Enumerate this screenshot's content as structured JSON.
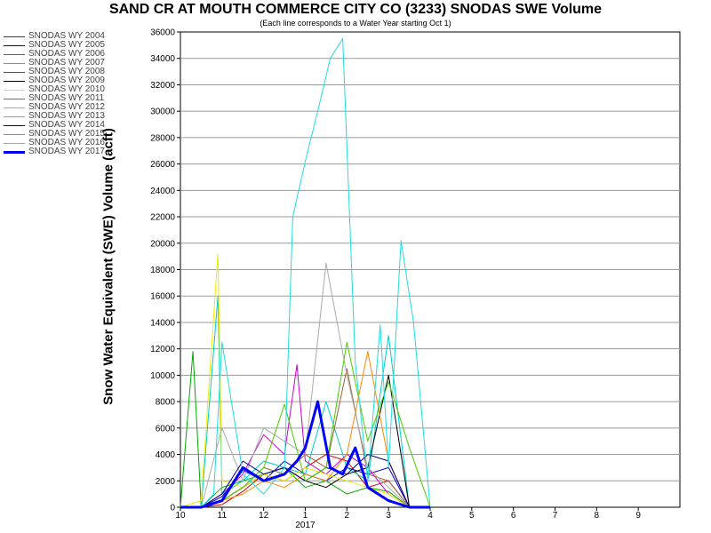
{
  "chart_data": {
    "type": "line",
    "title": "SAND CR AT MOUTH COMMERCE CITY CO (3233) SNODAS SWE Volume",
    "subtitle": "(Each line corresponds to a Water Year starting Oct 1)",
    "ylabel": "Snow Water Equivalent (SWE) Volume (acft)",
    "xlabel": "",
    "ylim": [
      0,
      36000
    ],
    "xlim": [
      "10",
      "10"
    ],
    "grid": true,
    "legend_position": "top-left",
    "x_tick_labels": [
      "10",
      "11",
      "12",
      "1",
      "2",
      "3",
      "4",
      "5",
      "6",
      "7",
      "8",
      "9"
    ],
    "x_year_label": "2017",
    "y_ticks": [
      0,
      2000,
      4000,
      6000,
      8000,
      10000,
      12000,
      14000,
      16000,
      18000,
      20000,
      22000,
      24000,
      26000,
      28000,
      30000,
      32000,
      34000,
      36000
    ],
    "series": [
      {
        "name": "SNODAS WY 2004",
        "color": "#cc0000",
        "x": [
          0.0,
          0.5,
          1.0,
          1.5,
          2.0,
          2.5,
          3.0,
          3.5,
          4.0,
          4.5,
          5.0,
          5.5,
          6.0
        ],
        "y": [
          0,
          0,
          200,
          1200,
          2500,
          2000,
          3000,
          4000,
          3500,
          1500,
          2000,
          0,
          0
        ]
      },
      {
        "name": "SNODAS WY 2005",
        "color": "#0000cc",
        "x": [
          0.0,
          0.5,
          1.0,
          1.5,
          2.0,
          2.5,
          3.0,
          3.5,
          4.0,
          4.5,
          5.0,
          5.5,
          6.0
        ],
        "y": [
          0,
          0,
          800,
          2800,
          2000,
          3500,
          2500,
          2000,
          3000,
          2500,
          3000,
          0,
          0
        ]
      },
      {
        "name": "SNODAS WY 2006",
        "color": "#00aa00",
        "x": [
          0.0,
          0.3,
          0.5,
          1.0,
          1.5,
          2.0,
          2.5,
          3.0,
          3.5,
          4.0,
          4.5,
          5.0,
          5.5
        ],
        "y": [
          0,
          11800,
          0,
          1500,
          2000,
          2500,
          3000,
          1500,
          2000,
          1000,
          1500,
          1200,
          0
        ]
      },
      {
        "name": "SNODAS WY 2007",
        "color": "#00cccc",
        "x": [
          0.0,
          0.5,
          0.9,
          1.0,
          1.5,
          2.0,
          2.5,
          3.0,
          3.5,
          4.0,
          4.5,
          5.0,
          5.5
        ],
        "y": [
          0,
          0,
          16000,
          1000,
          2000,
          3500,
          3000,
          2500,
          8000,
          3000,
          2000,
          13000,
          0
        ]
      },
      {
        "name": "SNODAS WY 2008",
        "color": "#cc00cc",
        "x": [
          0.0,
          0.5,
          1.0,
          1.5,
          2.0,
          2.5,
          2.8,
          3.0,
          3.5,
          4.0,
          4.5,
          5.0,
          5.5
        ],
        "y": [
          0,
          0,
          1000,
          2500,
          5500,
          4000,
          10800,
          3500,
          2500,
          4000,
          3000,
          1000,
          0
        ]
      },
      {
        "name": "SNODAS WY 2009",
        "color": "#000000",
        "x": [
          0.0,
          0.5,
          1.0,
          1.5,
          2.0,
          2.5,
          3.0,
          3.5,
          4.0,
          4.5,
          5.0,
          5.5,
          6.0
        ],
        "y": [
          0,
          0,
          500,
          1500,
          2500,
          3000,
          2000,
          1500,
          2500,
          3000,
          10000,
          0,
          0
        ]
      },
      {
        "name": "SNODAS WY 2010",
        "color": "#eeee00",
        "x": [
          0.0,
          0.5,
          0.9,
          1.0,
          1.5,
          2.0,
          2.5,
          3.0,
          3.5,
          4.0,
          4.5,
          5.0,
          5.5
        ],
        "y": [
          0,
          500,
          19200,
          2000,
          1500,
          2500,
          2000,
          3000,
          2500,
          2000,
          1500,
          1000,
          0
        ]
      },
      {
        "name": "SNODAS WY 2011",
        "color": "#996633",
        "x": [
          0.0,
          0.5,
          1.0,
          1.5,
          2.0,
          2.5,
          3.0,
          3.5,
          4.0,
          4.5,
          5.0,
          5.5,
          6.0
        ],
        "y": [
          0,
          0,
          500,
          1500,
          3000,
          2500,
          4000,
          3000,
          10500,
          2500,
          2000,
          0,
          0
        ]
      },
      {
        "name": "SNODAS WY 2012",
        "color": "#aaaaaa",
        "x": [
          0.0,
          0.5,
          1.0,
          1.5,
          2.0,
          2.5,
          3.0,
          3.5,
          4.0,
          4.5,
          5.0,
          5.5,
          6.0
        ],
        "y": [
          0,
          0,
          6000,
          2000,
          6000,
          5000,
          4000,
          18500,
          10000,
          3000,
          1500,
          0,
          0
        ]
      },
      {
        "name": "SNODAS WY 2013",
        "color": "#ff8800",
        "x": [
          0.0,
          0.5,
          1.0,
          1.5,
          2.0,
          2.5,
          3.0,
          3.5,
          4.0,
          4.5,
          5.0,
          5.5,
          6.0
        ],
        "y": [
          0,
          0,
          500,
          1000,
          2000,
          1500,
          2500,
          2000,
          4000,
          11800,
          3500,
          0,
          0
        ]
      },
      {
        "name": "SNODAS WY 2014",
        "color": "#000088",
        "x": [
          0.0,
          0.5,
          1.0,
          1.5,
          2.0,
          2.5,
          3.0,
          3.5,
          4.0,
          4.5,
          5.0,
          5.5,
          6.0
        ],
        "y": [
          0,
          0,
          1000,
          3500,
          2500,
          3000,
          2000,
          3000,
          2500,
          4000,
          3500,
          0,
          0
        ]
      },
      {
        "name": "SNODAS WY 2015",
        "color": "#44cc00",
        "x": [
          0.0,
          0.5,
          1.0,
          1.5,
          2.0,
          2.5,
          3.0,
          3.5,
          4.0,
          4.5,
          5.0,
          5.5,
          6.0
        ],
        "y": [
          0,
          0,
          500,
          1500,
          3000,
          7800,
          2000,
          3000,
          12500,
          5000,
          9500,
          4500,
          0
        ]
      },
      {
        "name": "SNODAS WY 2016",
        "color": "#22dddd",
        "x": [
          0.0,
          0.5,
          0.8,
          1.0,
          1.5,
          2.0,
          2.5,
          2.7,
          3.0,
          3.3,
          3.6,
          3.9,
          4.2,
          4.5,
          4.8,
          5.0,
          5.3,
          5.6,
          6.0
        ],
        "y": [
          0,
          0,
          1000,
          12500,
          2500,
          1000,
          3000,
          22000,
          26200,
          30000,
          34000,
          35500,
          11000,
          2000,
          13800,
          3000,
          20200,
          14000,
          0
        ]
      },
      {
        "name": "SNODAS WY 2017",
        "color": "#0000ff",
        "bold": true,
        "x": [
          0.0,
          0.5,
          1.0,
          1.5,
          2.0,
          2.5,
          2.8,
          3.0,
          3.3,
          3.6,
          3.9,
          4.2,
          4.5,
          5.0,
          5.5,
          6.0
        ],
        "y": [
          0,
          0,
          500,
          3000,
          2000,
          2500,
          3500,
          4500,
          8000,
          3000,
          2500,
          4500,
          1500,
          500,
          0,
          0
        ]
      }
    ]
  }
}
